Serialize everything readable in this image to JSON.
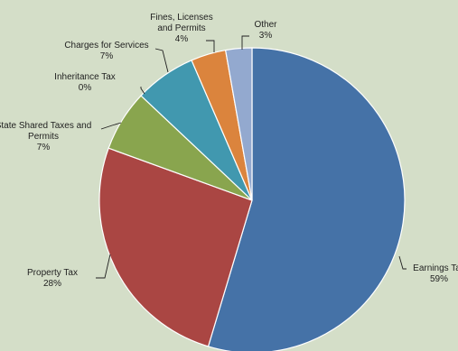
{
  "chart_data": {
    "type": "pie",
    "title": "",
    "slices": [
      {
        "name": "Earnings Tax",
        "label_lines": [
          "Earnings Tax",
          "59%"
        ],
        "value": 59,
        "color": "#4572a7"
      },
      {
        "name": "Property Tax",
        "label_lines": [
          "Property  Tax",
          "28%"
        ],
        "value": 28,
        "color": "#aa4643"
      },
      {
        "name": "State Shared Taxes and Permits",
        "label_lines": [
          "State Shared Taxes and",
          "Permits",
          "7%"
        ],
        "value": 7,
        "color": "#89a54e"
      },
      {
        "name": "Inheritance Tax",
        "label_lines": [
          "Inheritance  Tax",
          "0%"
        ],
        "value": 0,
        "color": "#71588f"
      },
      {
        "name": "Charges for Services",
        "label_lines": [
          "Charges for Services",
          "7%"
        ],
        "value": 7,
        "color": "#4198af"
      },
      {
        "name": "Fines, Licenses and Permits",
        "label_lines": [
          "Fines, Licenses",
          "and Permits",
          "4%"
        ],
        "value": 4,
        "color": "#db843d"
      },
      {
        "name": "Other",
        "label_lines": [
          "Other",
          "3%"
        ],
        "value": 3,
        "color": "#93a9cf"
      }
    ],
    "legend": "none",
    "start_angle": "12 o'clock",
    "direction": "clockwise"
  }
}
